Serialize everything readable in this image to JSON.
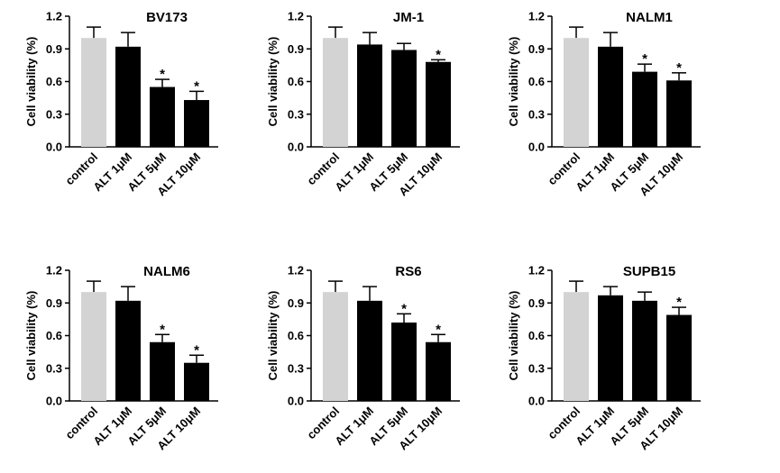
{
  "figure": {
    "bar_colors": {
      "control": "#d3d3d3",
      "treated": "#000000"
    },
    "significance_marker": "*"
  },
  "chart_data": [
    {
      "type": "bar",
      "title": "BV173",
      "ylabel": "Cell viability (%)",
      "categories": [
        "control",
        "ALT 1μM",
        "ALT 5μM",
        "ALT 10μM"
      ],
      "values": [
        1.0,
        0.92,
        0.55,
        0.43
      ],
      "errors": [
        0.1,
        0.13,
        0.07,
        0.08
      ],
      "significant": [
        false,
        false,
        true,
        true
      ],
      "ylim": [
        0,
        1.2
      ],
      "yticks": [
        "0.0",
        "0.3",
        "0.6",
        "0.9",
        "1.2"
      ]
    },
    {
      "type": "bar",
      "title": "JM-1",
      "ylabel": "Cell viability (%)",
      "categories": [
        "control",
        "ALT 1μM",
        "ALT 5μM",
        "ALT 10μM"
      ],
      "values": [
        1.0,
        0.94,
        0.89,
        0.78
      ],
      "errors": [
        0.1,
        0.11,
        0.06,
        0.02
      ],
      "significant": [
        false,
        false,
        false,
        true
      ],
      "ylim": [
        0,
        1.2
      ],
      "yticks": [
        "0.0",
        "0.3",
        "0.6",
        "0.9",
        "1.2"
      ]
    },
    {
      "type": "bar",
      "title": "NALM1",
      "ylabel": "Cell viability (%)",
      "categories": [
        "control",
        "ALT 1μM",
        "ALT 5μM",
        "ALT 10μM"
      ],
      "values": [
        1.0,
        0.92,
        0.69,
        0.61
      ],
      "errors": [
        0.1,
        0.13,
        0.07,
        0.07
      ],
      "significant": [
        false,
        false,
        true,
        true
      ],
      "ylim": [
        0,
        1.2
      ],
      "yticks": [
        "0.0",
        "0.3",
        "0.6",
        "0.9",
        "1.2"
      ]
    },
    {
      "type": "bar",
      "title": "NALM6",
      "ylabel": "Cell viability (%)",
      "categories": [
        "control",
        "ALT 1μM",
        "ALT 5μM",
        "ALT 10μM"
      ],
      "values": [
        1.0,
        0.92,
        0.54,
        0.35
      ],
      "errors": [
        0.1,
        0.13,
        0.07,
        0.07
      ],
      "significant": [
        false,
        false,
        true,
        true
      ],
      "ylim": [
        0,
        1.2
      ],
      "yticks": [
        "0.0",
        "0.3",
        "0.6",
        "0.9",
        "1.2"
      ]
    },
    {
      "type": "bar",
      "title": "RS6",
      "ylabel": "Cell viability (%)",
      "categories": [
        "control",
        "ALT 1μM",
        "ALT 5μM",
        "ALT 10μM"
      ],
      "values": [
        1.0,
        0.92,
        0.72,
        0.54
      ],
      "errors": [
        0.1,
        0.13,
        0.08,
        0.07
      ],
      "significant": [
        false,
        false,
        true,
        true
      ],
      "ylim": [
        0,
        1.2
      ],
      "yticks": [
        "0.0",
        "0.3",
        "0.6",
        "0.9",
        "1.2"
      ]
    },
    {
      "type": "bar",
      "title": "SUPB15",
      "ylabel": "Cell viability (%)",
      "categories": [
        "control",
        "ALT 1μM",
        "ALT 5μM",
        "ALT 10μM"
      ],
      "values": [
        1.0,
        0.97,
        0.92,
        0.79
      ],
      "errors": [
        0.1,
        0.08,
        0.08,
        0.07
      ],
      "significant": [
        false,
        false,
        false,
        true
      ],
      "ylim": [
        0,
        1.2
      ],
      "yticks": [
        "0.0",
        "0.3",
        "0.6",
        "0.9",
        "1.2"
      ]
    }
  ]
}
